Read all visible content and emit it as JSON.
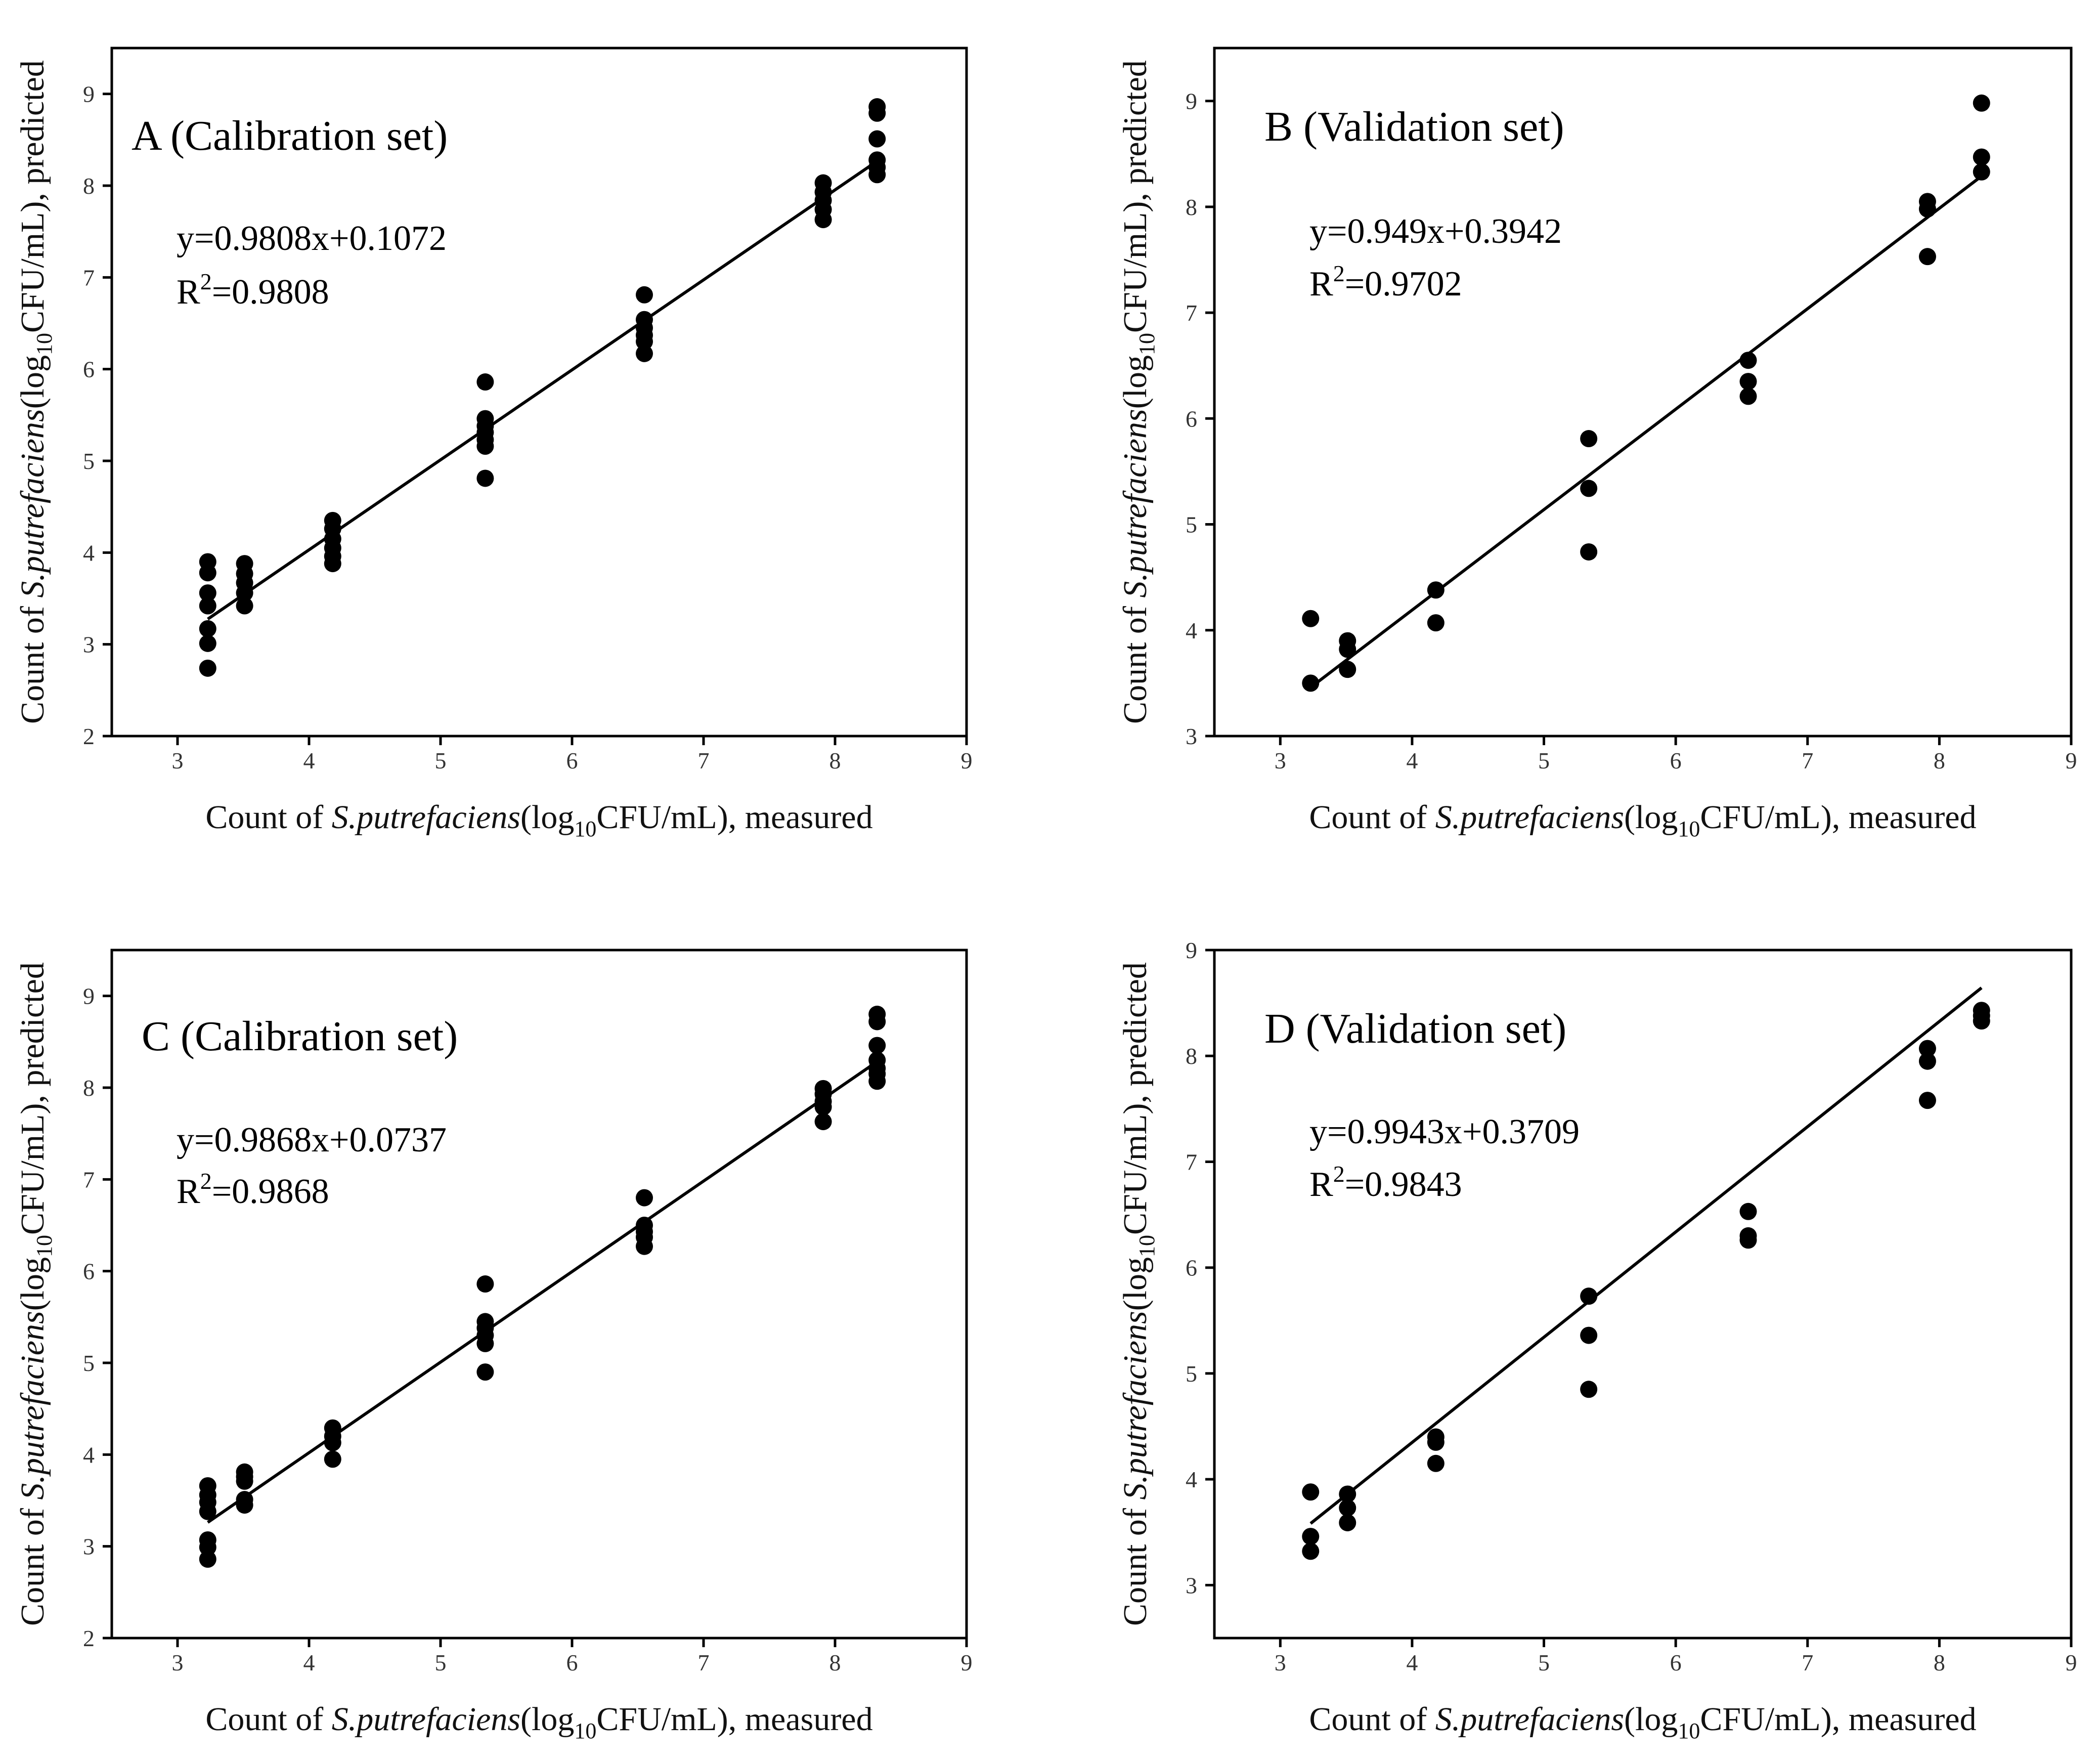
{
  "chart_data": [
    {
      "type": "scatter",
      "title": "A (Calibration set)",
      "xlabel_parts": [
        "Count of ",
        "S.putrefaciens",
        "(log",
        "10",
        "CFU/mL), measured"
      ],
      "ylabel_parts": [
        "Count of ",
        "S.putrefaciens",
        "(log",
        "10",
        "CFU/mL), predicted"
      ],
      "xlim": [
        2.5,
        9
      ],
      "ylim": [
        2,
        9.5
      ],
      "xticks": [
        3,
        4,
        5,
        6,
        7,
        8,
        9
      ],
      "yticks": [
        2,
        3,
        4,
        5,
        6,
        7,
        8,
        9
      ],
      "equation": "y=0.9808x+0.1072",
      "r2_prefix": "R",
      "r2_exp": "2",
      "r2_value": "=0.9808",
      "fit": {
        "slope": 0.9808,
        "intercept": 0.1072,
        "x_range": [
          3.23,
          8.32
        ]
      },
      "points": [
        [
          3.23,
          3.9
        ],
        [
          3.23,
          3.78
        ],
        [
          3.23,
          3.56
        ],
        [
          3.23,
          3.42
        ],
        [
          3.23,
          3.17
        ],
        [
          3.23,
          3.01
        ],
        [
          3.23,
          2.74
        ],
        [
          3.51,
          3.88
        ],
        [
          3.51,
          3.77
        ],
        [
          3.51,
          3.67
        ],
        [
          3.51,
          3.56
        ],
        [
          3.51,
          3.42
        ],
        [
          4.18,
          4.35
        ],
        [
          4.18,
          4.26
        ],
        [
          4.18,
          4.15
        ],
        [
          4.18,
          4.05
        ],
        [
          4.18,
          3.96
        ],
        [
          4.18,
          3.88
        ],
        [
          5.34,
          5.86
        ],
        [
          5.34,
          5.46
        ],
        [
          5.34,
          5.38
        ],
        [
          5.34,
          5.31
        ],
        [
          5.34,
          5.23
        ],
        [
          5.34,
          5.16
        ],
        [
          5.34,
          4.81
        ],
        [
          6.55,
          6.81
        ],
        [
          6.55,
          6.54
        ],
        [
          6.55,
          6.45
        ],
        [
          6.55,
          6.37
        ],
        [
          6.55,
          6.3
        ],
        [
          6.55,
          6.17
        ],
        [
          7.91,
          8.03
        ],
        [
          7.91,
          7.93
        ],
        [
          7.91,
          7.84
        ],
        [
          7.91,
          7.74
        ],
        [
          7.91,
          7.63
        ],
        [
          8.32,
          8.86
        ],
        [
          8.32,
          8.79
        ],
        [
          8.32,
          8.51
        ],
        [
          8.32,
          8.28
        ],
        [
          8.32,
          8.2
        ],
        [
          8.32,
          8.12
        ]
      ]
    },
    {
      "type": "scatter",
      "title": "B (Validation set)",
      "xlabel_parts": [
        "Count of ",
        "S.putrefaciens",
        "(log",
        "10",
        "CFU/mL), measured"
      ],
      "ylabel_parts": [
        "Count of ",
        "S.putrefaciens",
        "(log",
        "10",
        "CFU/mL), predicted"
      ],
      "xlim": [
        2.5,
        9
      ],
      "ylim": [
        3,
        9.5
      ],
      "xticks": [
        3,
        4,
        5,
        6,
        7,
        8,
        9
      ],
      "yticks": [
        3,
        4,
        5,
        6,
        7,
        8,
        9
      ],
      "equation": "y=0.949x+0.3942",
      "r2_prefix": "R",
      "r2_exp": "2",
      "r2_value": "=0.9702",
      "fit": {
        "slope": 0.949,
        "intercept": 0.3942,
        "x_range": [
          3.23,
          8.32
        ]
      },
      "points": [
        [
          3.23,
          4.11
        ],
        [
          3.23,
          3.5
        ],
        [
          3.51,
          3.9
        ],
        [
          3.51,
          3.82
        ],
        [
          3.51,
          3.63
        ],
        [
          4.18,
          4.38
        ],
        [
          4.18,
          4.07
        ],
        [
          5.34,
          5.81
        ],
        [
          5.34,
          5.34
        ],
        [
          5.34,
          4.74
        ],
        [
          6.55,
          6.55
        ],
        [
          6.55,
          6.35
        ],
        [
          6.55,
          6.21
        ],
        [
          7.91,
          8.05
        ],
        [
          7.91,
          7.98
        ],
        [
          7.91,
          7.53
        ],
        [
          8.32,
          8.98
        ],
        [
          8.32,
          8.47
        ],
        [
          8.32,
          8.33
        ]
      ]
    },
    {
      "type": "scatter",
      "title": "C (Calibration set)",
      "xlabel_parts": [
        "Count of ",
        "S.putrefaciens",
        "(log",
        "10",
        "CFU/mL), measured"
      ],
      "ylabel_parts": [
        "Count of ",
        "S.putrefaciens",
        "(log",
        "10",
        "CFU/mL), predicted"
      ],
      "xlim": [
        2.5,
        9
      ],
      "ylim": [
        2,
        9.5
      ],
      "xticks": [
        3,
        4,
        5,
        6,
        7,
        8,
        9
      ],
      "yticks": [
        2,
        3,
        4,
        5,
        6,
        7,
        8,
        9
      ],
      "equation": "y=0.9868x+0.0737",
      "r2_prefix": "R",
      "r2_exp": "2",
      "r2_value": "=0.9868",
      "fit": {
        "slope": 0.9868,
        "intercept": 0.0737,
        "x_range": [
          3.23,
          8.32
        ]
      },
      "points": [
        [
          3.23,
          3.66
        ],
        [
          3.23,
          3.56
        ],
        [
          3.23,
          3.48
        ],
        [
          3.23,
          3.38
        ],
        [
          3.23,
          3.07
        ],
        [
          3.23,
          2.99
        ],
        [
          3.23,
          2.86
        ],
        [
          3.51,
          3.81
        ],
        [
          3.51,
          3.76
        ],
        [
          3.51,
          3.71
        ],
        [
          3.51,
          3.51
        ],
        [
          3.51,
          3.45
        ],
        [
          4.18,
          4.29
        ],
        [
          4.18,
          4.2
        ],
        [
          4.18,
          4.13
        ],
        [
          4.18,
          3.95
        ],
        [
          5.34,
          5.86
        ],
        [
          5.34,
          5.45
        ],
        [
          5.34,
          5.38
        ],
        [
          5.34,
          5.3
        ],
        [
          5.34,
          5.21
        ],
        [
          5.34,
          4.9
        ],
        [
          6.55,
          6.8
        ],
        [
          6.55,
          6.5
        ],
        [
          6.55,
          6.43
        ],
        [
          6.55,
          6.37
        ],
        [
          6.55,
          6.27
        ],
        [
          7.91,
          7.99
        ],
        [
          7.91,
          7.93
        ],
        [
          7.91,
          7.85
        ],
        [
          7.91,
          7.79
        ],
        [
          7.91,
          7.63
        ],
        [
          8.32,
          8.8
        ],
        [
          8.32,
          8.72
        ],
        [
          8.32,
          8.46
        ],
        [
          8.32,
          8.3
        ],
        [
          8.32,
          8.21
        ],
        [
          8.32,
          8.15
        ],
        [
          8.32,
          8.07
        ]
      ]
    },
    {
      "type": "scatter",
      "title": "D (Validation set)",
      "xlabel_parts": [
        "Count of ",
        "S.putrefaciens",
        "(log",
        "10",
        "CFU/mL), measured"
      ],
      "ylabel_parts": [
        "Count of ",
        "S.putrefaciens",
        "(log",
        "10",
        "CFU/mL), predicted"
      ],
      "xlim": [
        2.5,
        9
      ],
      "ylim": [
        2.5,
        9
      ],
      "xticks": [
        3,
        4,
        5,
        6,
        7,
        8,
        9
      ],
      "yticks": [
        3,
        4,
        5,
        6,
        7,
        8,
        9
      ],
      "equation": "y=0.9943x+0.3709",
      "r2_prefix": "R",
      "r2_exp": "2",
      "r2_value": "=0.9843",
      "fit": {
        "slope": 0.9943,
        "intercept": 0.3709,
        "x_range": [
          3.23,
          8.32
        ]
      },
      "points": [
        [
          3.23,
          3.88
        ],
        [
          3.23,
          3.46
        ],
        [
          3.23,
          3.32
        ],
        [
          3.51,
          3.86
        ],
        [
          3.51,
          3.73
        ],
        [
          3.51,
          3.59
        ],
        [
          4.18,
          4.4
        ],
        [
          4.18,
          4.35
        ],
        [
          4.18,
          4.15
        ],
        [
          5.34,
          5.73
        ],
        [
          5.34,
          5.36
        ],
        [
          5.34,
          4.85
        ],
        [
          6.55,
          6.53
        ],
        [
          6.55,
          6.3
        ],
        [
          6.55,
          6.26
        ],
        [
          7.91,
          8.07
        ],
        [
          7.91,
          7.95
        ],
        [
          7.91,
          7.58
        ],
        [
          8.32,
          8.43
        ],
        [
          8.32,
          8.38
        ],
        [
          8.32,
          8.33
        ]
      ]
    }
  ]
}
